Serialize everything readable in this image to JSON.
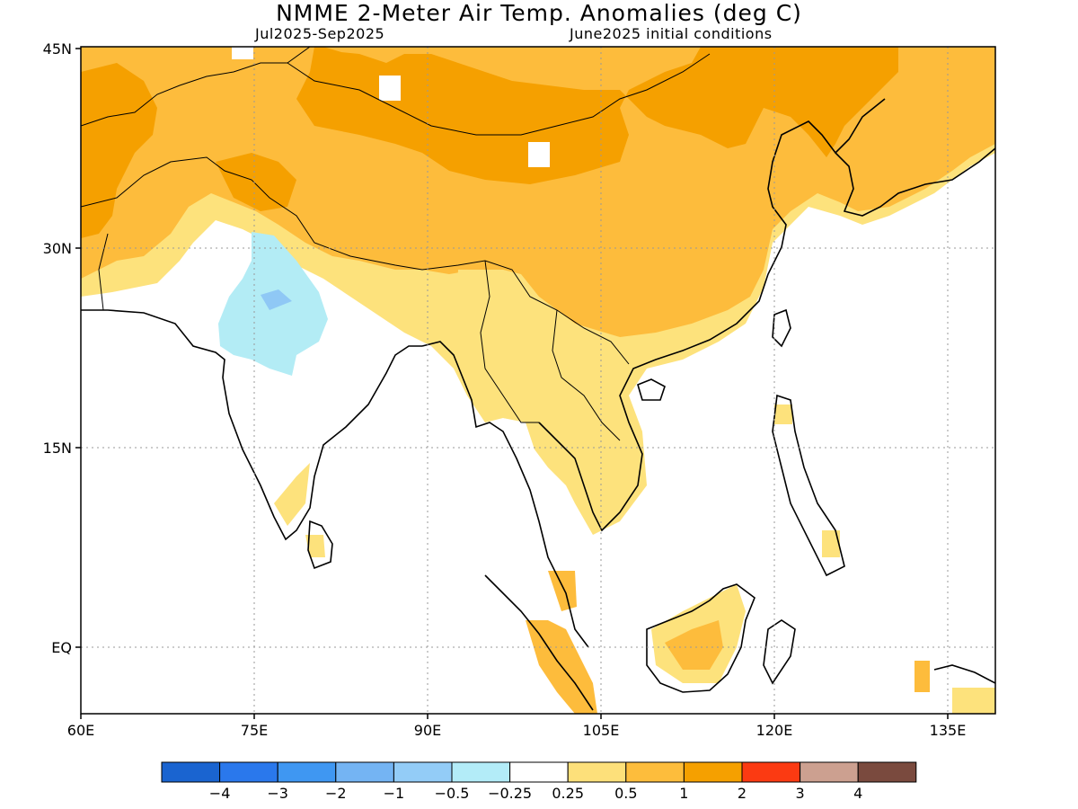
{
  "header": {
    "title": "NMME 2-Meter Air Temp. Anomalies (deg C)",
    "period": "Jul2025-Sep2025",
    "init": "June2025 initial conditions"
  },
  "map": {
    "lat_labels": [
      "45N",
      "30N",
      "15N",
      "EQ"
    ],
    "lon_labels": [
      "60E",
      "75E",
      "90E",
      "105E",
      "120E",
      "135E"
    ],
    "lat_values": [
      45,
      30,
      15,
      0
    ],
    "lon_values": [
      60,
      75,
      90,
      105,
      120,
      135
    ],
    "extent": {
      "lon_min": 60,
      "lon_max": 139,
      "lat_min": -5,
      "lat_max": 45
    }
  },
  "colors": {
    "very_warm": "#f5a000",
    "warm": "#fdbc3c",
    "mild_warm": "#fde27c",
    "cool": "#b3ecf5",
    "cooler": "#8fc8f5",
    "coast": "#000000"
  },
  "legend": {
    "colors": [
      "#1a64d0",
      "#2a78ec",
      "#3f97f2",
      "#74b4f3",
      "#93ccf7",
      "#b3ecf8",
      "#ffffff",
      "#fde07a",
      "#fdbd3c",
      "#f5a000",
      "#fb3a12",
      "#cca090",
      "#7a4a3e"
    ],
    "labels": [
      "-4",
      "-3",
      "-2",
      "-1",
      "-0.5",
      "-0.25",
      "0.25",
      "0.5",
      "1",
      "2",
      "3",
      "4"
    ]
  }
}
